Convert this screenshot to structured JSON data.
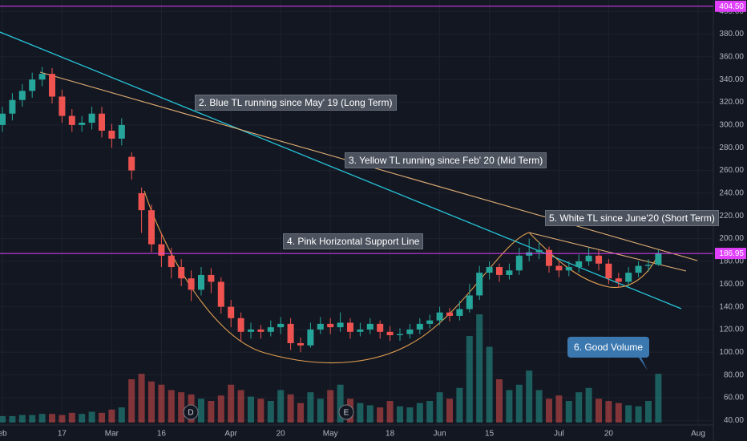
{
  "chart_data": {
    "type": "candlestick",
    "categories": [
      "eb",
      null,
      null,
      null,
      null,
      null,
      "17",
      null,
      null,
      null,
      null,
      "Mar",
      null,
      null,
      null,
      null,
      "16",
      null,
      null,
      null,
      null,
      null,
      null,
      "Apr",
      null,
      null,
      null,
      null,
      "20",
      null,
      null,
      null,
      null,
      "May",
      null,
      null,
      null,
      null,
      null,
      "18",
      null,
      null,
      null,
      null,
      "Jun",
      null,
      null,
      null,
      null,
      "15",
      null,
      null,
      null,
      null,
      null,
      null,
      "Jul",
      null,
      null,
      null,
      null,
      "20",
      null,
      null,
      null,
      null,
      null,
      null,
      null,
      null,
      "Aug"
    ],
    "open": [
      300,
      310,
      322,
      330,
      340,
      345,
      325,
      308,
      300,
      302,
      310,
      295,
      288,
      272,
      240,
      225,
      195,
      185,
      175,
      165,
      155,
      168,
      162,
      140,
      130,
      118,
      120,
      118,
      122,
      125,
      108,
      106,
      120,
      125,
      122,
      126,
      118,
      120,
      125,
      118,
      115,
      116,
      120,
      125,
      128,
      135,
      132,
      138,
      150,
      170,
      175,
      168,
      172,
      185,
      188,
      190,
      176,
      172,
      175,
      180,
      185,
      178,
      165,
      162,
      170,
      176,
      177,
      null,
      null,
      null,
      null
    ],
    "high": [
      316,
      328,
      336,
      346,
      351,
      350,
      331,
      314,
      308,
      316,
      316,
      301,
      306,
      276,
      245,
      230,
      205,
      192,
      182,
      172,
      175,
      174,
      166,
      146,
      135,
      126,
      124,
      128,
      131,
      130,
      113,
      126,
      131,
      130,
      135,
      130,
      126,
      130,
      128,
      123,
      121,
      125,
      130,
      133,
      140,
      139,
      145,
      160,
      176,
      180,
      178,
      178,
      192,
      200,
      197,
      193,
      180,
      180,
      186,
      192,
      190,
      182,
      170,
      175,
      180,
      182,
      190,
      null,
      null,
      null,
      null
    ],
    "low": [
      294,
      304,
      316,
      324,
      334,
      319,
      302,
      294,
      294,
      296,
      289,
      280,
      282,
      252,
      205,
      188,
      175,
      165,
      158,
      145,
      150,
      152,
      134,
      122,
      110,
      112,
      112,
      114,
      116,
      102,
      100,
      104,
      116,
      116,
      118,
      112,
      114,
      116,
      112,
      110,
      110,
      112,
      116,
      121,
      124,
      127,
      128,
      135,
      146,
      164,
      162,
      164,
      168,
      180,
      182,
      170,
      166,
      167,
      170,
      176,
      172,
      160,
      157,
      158,
      166,
      171,
      176,
      null,
      null,
      null,
      null
    ],
    "close": [
      310,
      322,
      330,
      340,
      345,
      325,
      308,
      300,
      302,
      310,
      295,
      288,
      300,
      260,
      225,
      195,
      185,
      175,
      165,
      155,
      168,
      162,
      140,
      130,
      118,
      120,
      118,
      122,
      125,
      108,
      106,
      120,
      125,
      122,
      126,
      118,
      120,
      125,
      118,
      115,
      116,
      120,
      125,
      128,
      135,
      132,
      138,
      150,
      170,
      175,
      168,
      172,
      185,
      188,
      190,
      176,
      172,
      175,
      180,
      185,
      178,
      165,
      162,
      170,
      176,
      177,
      186.95,
      null,
      null,
      null,
      null
    ],
    "volume": [
      6,
      6,
      7,
      7,
      8,
      8,
      7,
      9,
      8,
      10,
      9,
      12,
      14,
      40,
      45,
      38,
      35,
      30,
      28,
      26,
      22,
      20,
      25,
      35,
      30,
      24,
      22,
      20,
      30,
      26,
      18,
      28,
      22,
      30,
      35,
      22,
      18,
      16,
      14,
      20,
      15,
      14,
      18,
      20,
      28,
      22,
      32,
      80,
      100,
      70,
      40,
      30,
      35,
      48,
      30,
      22,
      25,
      20,
      28,
      32,
      22,
      20,
      18,
      16,
      15,
      20,
      45,
      null,
      null,
      null,
      null
    ],
    "colors": {
      "up": "#26a69a",
      "down": "#ef5350"
    },
    "ylim": [
      36,
      410
    ],
    "yticks": [
      {
        "value": 40,
        "label": "40.00"
      },
      {
        "value": 60,
        "label": "60.00"
      },
      {
        "value": 80,
        "label": "80.00"
      },
      {
        "value": 100,
        "label": "100.00"
      },
      {
        "value": 120,
        "label": "120.00"
      },
      {
        "value": 140,
        "label": "140.00"
      },
      {
        "value": 160,
        "label": "160.00"
      },
      {
        "value": 180,
        "label": "180.00"
      },
      {
        "value": 200,
        "label": "200.00"
      },
      {
        "value": 220,
        "label": "220.00"
      },
      {
        "value": 240,
        "label": "240.00"
      },
      {
        "value": 260,
        "label": "260.00"
      },
      {
        "value": 280,
        "label": "280.00"
      },
      {
        "value": 300,
        "label": "300.00"
      },
      {
        "value": 320,
        "label": "320.00"
      },
      {
        "value": 340,
        "label": "340.00"
      },
      {
        "value": 360,
        "label": "360.00"
      },
      {
        "value": 380,
        "label": "380.00"
      },
      {
        "value": 400,
        "label": "400.00"
      }
    ],
    "grid": true,
    "hlines": [
      {
        "value": {
          "value": 404.5,
          "label": "404.50"
        },
        "color": "#e040fb"
      },
      {
        "value": 186.95,
        "color": "#e040fb"
      }
    ],
    "annotations": [
      "2. Blue TL running since May' 19 (Long Term)",
      "3. Yellow TL running since Feb' 20 (Mid Term)",
      "4. Pink Horizontal Support Line",
      "5. White TL since June'20 (Short Term)",
      "6. Good Volume"
    ],
    "events": [
      "D",
      "E"
    ]
  }
}
